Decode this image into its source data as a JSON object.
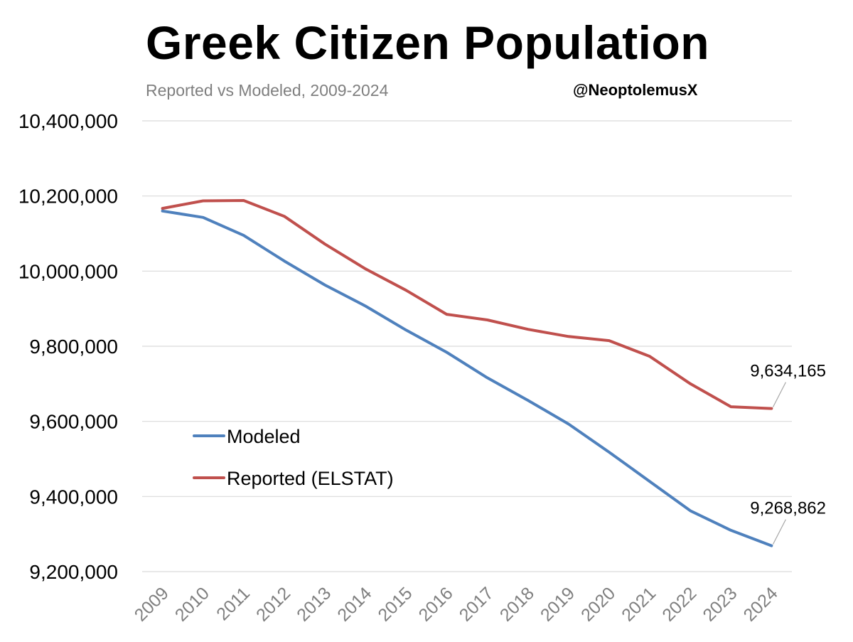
{
  "header": {
    "title": "Greek Citizen Population",
    "subtitle": "Reported vs Modeled, 2009-2024",
    "handle": "@NeoptolemusX"
  },
  "chart_data": {
    "type": "line",
    "title": "Greek Citizen Population",
    "subtitle": "Reported vs Modeled, 2009-2024",
    "xlabel": "",
    "ylabel": "",
    "x": [
      "2009",
      "2010",
      "2011",
      "2012",
      "2013",
      "2014",
      "2015",
      "2016",
      "2017",
      "2018",
      "2019",
      "2020",
      "2021",
      "2022",
      "2023",
      "2024"
    ],
    "ylim": [
      9200000,
      10400000
    ],
    "yticks": [
      9200000,
      9400000,
      9600000,
      9800000,
      10000000,
      10200000,
      10400000
    ],
    "ytick_labels": [
      "9,200,000",
      "9,400,000",
      "9,600,000",
      "9,800,000",
      "10,000,000",
      "10,200,000",
      "10,400,000"
    ],
    "grid": true,
    "legend_position": "lower-left",
    "series": [
      {
        "name": "Modeled",
        "color": "#4f81bd",
        "values": [
          10160000,
          10143000,
          10095000,
          10027000,
          9963000,
          9907000,
          9843000,
          9784000,
          9716000,
          9656000,
          9593000,
          9518000,
          9440000,
          9362000,
          9310000,
          9268862
        ],
        "end_label": "9,268,862"
      },
      {
        "name": "Reported (ELSTAT)",
        "color": "#c0504d",
        "values": [
          10167000,
          10187000,
          10188000,
          10146000,
          10072000,
          10006000,
          9949000,
          9885000,
          9870000,
          9845000,
          9826000,
          9815000,
          9773000,
          9700000,
          9639000,
          9634165
        ],
        "end_label": "9,634,165"
      }
    ]
  }
}
